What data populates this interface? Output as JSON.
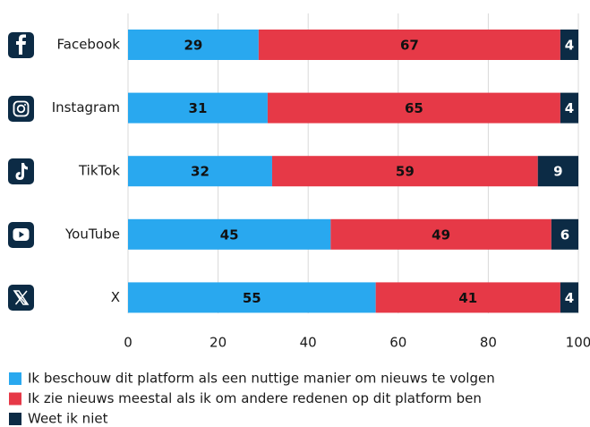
{
  "chart_data": {
    "type": "stacked_bar_horizontal",
    "categories": [
      "Facebook",
      "Instagram",
      "TikTok",
      "YouTube",
      "X"
    ],
    "series": [
      {
        "name": "Ik beschouw dit platform als een nuttige manier om nieuws te volgen",
        "color": "#29a8ef",
        "values": [
          29,
          31,
          32,
          45,
          55
        ]
      },
      {
        "name": "Ik zie nieuws meestal als ik om andere redenen op dit platform ben",
        "color": "#e63947",
        "values": [
          67,
          65,
          59,
          49,
          41
        ]
      },
      {
        "name": "Weet ik niet",
        "color": "#0c2b45",
        "values": [
          4,
          4,
          9,
          6,
          4
        ]
      }
    ],
    "xlim": [
      0,
      100
    ],
    "xticks": [
      0,
      20,
      40,
      60,
      80,
      100
    ],
    "grid": true
  }
}
